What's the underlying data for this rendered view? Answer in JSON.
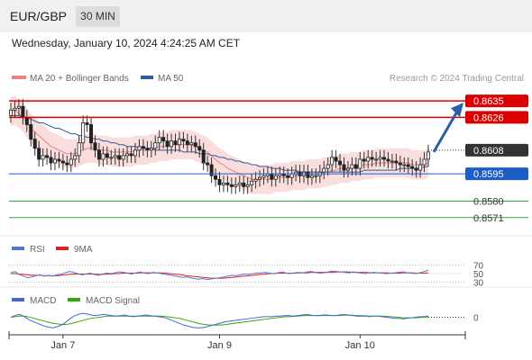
{
  "header": {
    "symbol": "EUR/GBP",
    "timeframe": "30 MIN",
    "datetime": "Wednesday, January 10, 2024 4:24:25 AM CET"
  },
  "legend": {
    "bollinger": "MA 20 + Bollinger Bands",
    "ma50": "MA 50",
    "credit": "Research © 2024 Trading Central"
  },
  "rsi_legend": {
    "rsi": "RSI",
    "ma": "9MA"
  },
  "macd_legend": {
    "macd": "MACD",
    "signal": "MACD Signal"
  },
  "colors": {
    "support_resistance": "#dd0000",
    "current": "#333333",
    "blue_level": "#1e5cc8",
    "green_level": "#3aa14a",
    "bollinger": "#f08080",
    "ma50": "#2c5c9c",
    "rsi": "#5577cc",
    "rsi_ma": "#dd2222",
    "macd": "#4466dd",
    "macd_signal": "#33aa00",
    "arrow": "#2a5ea8"
  },
  "chart_data": [
    {
      "type": "candlestick",
      "x_labels": [
        "Jan 7",
        "Jan 9",
        "Jan 10"
      ],
      "ylim": [
        0.8563,
        0.864
      ],
      "levels": [
        {
          "label": "0.8635",
          "value": 0.8635,
          "style": "resistance"
        },
        {
          "label": "0.8626",
          "value": 0.8626,
          "style": "resistance"
        },
        {
          "label": "0.8608",
          "value": 0.8608,
          "style": "current"
        },
        {
          "label": "0.8595",
          "value": 0.8595,
          "style": "support-blue"
        },
        {
          "label": "0.8580",
          "value": 0.858,
          "style": "support-green"
        },
        {
          "label": "0.8571",
          "value": 0.8571,
          "style": "support-green"
        }
      ],
      "forecast_arrow": {
        "from": 0.8607,
        "to": 0.8633
      },
      "close": [
        0.863,
        0.8631,
        0.8632,
        0.8626,
        0.8622,
        0.8614,
        0.8609,
        0.8603,
        0.8605,
        0.8604,
        0.8601,
        0.8603,
        0.8602,
        0.8601,
        0.86,
        0.8603,
        0.8605,
        0.8612,
        0.8623,
        0.8622,
        0.8612,
        0.8608,
        0.8603,
        0.8606,
        0.8604,
        0.8604,
        0.8605,
        0.8603,
        0.8605,
        0.8606,
        0.8605,
        0.8608,
        0.861,
        0.8609,
        0.8608,
        0.8609,
        0.8612,
        0.8615,
        0.8613,
        0.861,
        0.8613,
        0.8611,
        0.8614,
        0.8613,
        0.8611,
        0.8612,
        0.861,
        0.8608,
        0.8601,
        0.86,
        0.8594,
        0.8592,
        0.8589,
        0.859,
        0.8589,
        0.8588,
        0.8589,
        0.859,
        0.8588,
        0.8589,
        0.8591,
        0.8592,
        0.8593,
        0.8594,
        0.8595,
        0.8592,
        0.8594,
        0.8595,
        0.8594,
        0.8593,
        0.8595,
        0.8596,
        0.8594,
        0.8596,
        0.8593,
        0.8594,
        0.8594,
        0.8596,
        0.8598,
        0.86,
        0.8604,
        0.8602,
        0.86,
        0.8597,
        0.8598,
        0.86,
        0.8598,
        0.8603,
        0.8602,
        0.8604,
        0.8603,
        0.8603,
        0.8604,
        0.8603,
        0.8602,
        0.8602,
        0.8601,
        0.86,
        0.86,
        0.8599,
        0.8598,
        0.8597,
        0.86,
        0.8603,
        0.8607
      ],
      "ma20": [
        0.8629,
        0.863,
        0.8628,
        0.8626,
        0.8623,
        0.862,
        0.8618,
        0.8616,
        0.8614,
        0.8612,
        0.861,
        0.8609,
        0.8608,
        0.8607,
        0.8606,
        0.8606,
        0.8606,
        0.8607,
        0.8608,
        0.8609,
        0.8609,
        0.8609,
        0.8608,
        0.8608,
        0.8608,
        0.8607,
        0.8607,
        0.8607,
        0.8607,
        0.8607,
        0.8607,
        0.8608,
        0.8608,
        0.8608,
        0.8608,
        0.8609,
        0.8609,
        0.861,
        0.861,
        0.861,
        0.8611,
        0.8611,
        0.8611,
        0.8611,
        0.8611,
        0.8611,
        0.861,
        0.8609,
        0.8608,
        0.8607,
        0.8605,
        0.8603,
        0.8601,
        0.86,
        0.8598,
        0.8597,
        0.8596,
        0.8595,
        0.8594,
        0.8593,
        0.8592,
        0.8592,
        0.8592,
        0.8592,
        0.8592,
        0.8592,
        0.8593,
        0.8593,
        0.8593,
        0.8593,
        0.8594,
        0.8594,
        0.8594,
        0.8594,
        0.8595,
        0.8595,
        0.8595,
        0.8595,
        0.8596,
        0.8596,
        0.8597,
        0.8597,
        0.8598,
        0.8598,
        0.8598,
        0.8599,
        0.8599,
        0.8599,
        0.86,
        0.86,
        0.86,
        0.8601,
        0.8601,
        0.8601,
        0.8601,
        0.8601,
        0.8601,
        0.8601,
        0.8601,
        0.8601,
        0.86,
        0.86,
        0.86,
        0.86,
        0.8601
      ],
      "ma50": [
        0.8627,
        0.8627,
        0.8627,
        0.8626,
        0.8626,
        0.8625,
        0.8624,
        0.8623,
        0.8623,
        0.8622,
        0.8621,
        0.862,
        0.862,
        0.8619,
        0.8618,
        0.8617,
        0.8617,
        0.8616,
        0.8616,
        0.8615,
        0.8615,
        0.8614,
        0.8614,
        0.8613,
        0.8613,
        0.8612,
        0.8612,
        0.8611,
        0.8611,
        0.861,
        0.861,
        0.861,
        0.8609,
        0.8609,
        0.8609,
        0.8609,
        0.8608,
        0.8608,
        0.8608,
        0.8608,
        0.8608,
        0.8608,
        0.8608,
        0.8607,
        0.8607,
        0.8607,
        0.8607,
        0.8606,
        0.8606,
        0.8606,
        0.8605,
        0.8605,
        0.8604,
        0.8604,
        0.8603,
        0.8603,
        0.8602,
        0.8602,
        0.8601,
        0.8601,
        0.86,
        0.86,
        0.8599,
        0.8599,
        0.8599,
        0.8598,
        0.8598,
        0.8598,
        0.8597,
        0.8597,
        0.8597,
        0.8597,
        0.8596,
        0.8596,
        0.8596,
        0.8596,
        0.8596,
        0.8596,
        0.8596,
        0.8596,
        0.8596,
        0.8596,
        0.8596,
        0.8596,
        0.8596,
        0.8596,
        0.8596,
        0.8596,
        0.8597,
        0.8597,
        0.8597,
        0.8597,
        0.8597,
        0.8597,
        0.8597,
        0.8597,
        0.8597,
        0.8598,
        0.8598,
        0.8598,
        0.8598,
        0.8598,
        0.8598,
        0.8599,
        0.8599
      ],
      "bollinger_upper_offset": 0.0008
    },
    {
      "type": "line",
      "name": "RSI",
      "ylim": [
        20,
        80
      ],
      "tick_labels": [
        "70",
        "50",
        "30"
      ],
      "rsi": [
        52,
        55,
        48,
        44,
        40,
        42,
        45,
        47,
        44,
        46,
        44,
        47,
        48,
        52,
        55,
        53,
        50,
        47,
        49,
        51,
        48,
        46,
        49,
        51,
        50,
        52,
        54,
        53,
        51,
        49,
        52,
        54,
        51,
        50,
        53,
        52,
        50,
        48,
        47,
        45,
        43,
        41,
        42,
        40,
        38,
        37,
        38,
        36,
        37,
        39,
        40,
        42,
        44,
        46,
        45,
        47,
        49,
        48,
        50,
        51,
        52,
        53,
        51,
        50,
        52,
        54,
        51,
        50,
        52,
        53,
        52,
        54,
        55,
        53,
        51,
        52,
        54,
        56,
        55,
        54,
        53,
        52,
        54,
        53,
        51,
        50,
        52,
        53,
        52,
        51,
        50,
        51,
        52,
        53,
        54,
        52,
        51,
        50,
        52,
        55,
        58
      ],
      "rsi_ma": [
        50,
        50,
        49,
        48,
        47,
        46,
        46,
        46,
        45,
        45,
        45,
        45,
        46,
        47,
        48,
        49,
        49,
        49,
        49,
        49,
        49,
        48,
        48,
        49,
        49,
        50,
        50,
        51,
        51,
        51,
        51,
        52,
        52,
        52,
        52,
        52,
        52,
        51,
        50,
        49,
        48,
        47,
        45,
        44,
        43,
        42,
        41,
        40,
        39,
        39,
        39,
        39,
        40,
        41,
        42,
        43,
        44,
        45,
        46,
        47,
        48,
        49,
        50,
        50,
        51,
        51,
        51,
        51,
        51,
        52,
        52,
        52,
        53,
        53,
        53,
        53,
        53,
        53,
        54,
        54,
        54,
        54,
        53,
        53,
        53,
        53,
        52,
        52,
        52,
        52,
        52,
        51,
        51,
        51,
        52,
        52,
        52,
        51,
        51,
        51,
        52
      ]
    },
    {
      "type": "line",
      "name": "MACD",
      "ylim": [
        -5,
        4
      ],
      "tick_labels": [
        "0"
      ],
      "macd": [
        0,
        0.6,
        1,
        0.4,
        -0.6,
        -1.4,
        -2,
        -2.6,
        -3.2,
        -3.6,
        -3.8,
        -3.4,
        -2.8,
        -1.8,
        -0.6,
        0.4,
        1,
        1.4,
        1.2,
        0.8,
        0.6,
        0.8,
        1,
        0.8,
        0.6,
        0.4,
        0.6,
        0.8,
        0.4,
        0.2,
        0.4,
        0.6,
        0.8,
        0.6,
        0.4,
        0.2,
        0,
        -0.4,
        -1,
        -1.6,
        -2.2,
        -2.8,
        -3.2,
        -3.6,
        -3.8,
        -3.8,
        -3.6,
        -3.2,
        -2.8,
        -2.4,
        -2,
        -1.6,
        -1.4,
        -1.2,
        -1,
        -0.8,
        -0.6,
        -0.4,
        -0.2,
        0,
        0.2,
        0.2,
        0.2,
        0.4,
        0.4,
        0.6,
        0.6,
        0.4,
        0.6,
        0.8,
        1,
        0.8,
        0.6,
        0.6,
        0.8,
        0.8,
        0.6,
        0.6,
        0.8,
        1,
        0.8,
        0.6,
        0.4,
        0.4,
        0.4,
        0.2,
        0.4,
        0.4,
        0.2,
        0,
        -0.2,
        -0.4,
        -0.4,
        -0.6,
        -0.4,
        -0.2,
        0,
        0.2,
        0.2,
        0.4
      ],
      "signal": [
        0,
        0.2,
        0.4,
        0.4,
        0.2,
        -0.2,
        -0.6,
        -1,
        -1.4,
        -1.8,
        -2.2,
        -2.4,
        -2.6,
        -2.6,
        -2.4,
        -2,
        -1.6,
        -1.2,
        -0.8,
        -0.4,
        -0.2,
        0,
        0.2,
        0.4,
        0.4,
        0.4,
        0.4,
        0.4,
        0.4,
        0.4,
        0.4,
        0.4,
        0.4,
        0.4,
        0.4,
        0.4,
        0.4,
        0.2,
        0,
        -0.2,
        -0.4,
        -0.8,
        -1.2,
        -1.6,
        -2,
        -2.4,
        -2.6,
        -2.8,
        -2.8,
        -2.8,
        -2.8,
        -2.6,
        -2.4,
        -2.2,
        -2,
        -1.8,
        -1.6,
        -1.4,
        -1.2,
        -1,
        -0.8,
        -0.6,
        -0.4,
        -0.2,
        0,
        0.2,
        0.2,
        0.3,
        0.4,
        0.5,
        0.6,
        0.6,
        0.6,
        0.6,
        0.6,
        0.6,
        0.6,
        0.6,
        0.6,
        0.7,
        0.7,
        0.7,
        0.6,
        0.6,
        0.5,
        0.4,
        0.4,
        0.4,
        0.4,
        0.3,
        0.2,
        0.1,
        0,
        -0.2,
        -0.2,
        -0.2,
        -0.2,
        -0.1,
        0,
        0.1
      ]
    }
  ]
}
